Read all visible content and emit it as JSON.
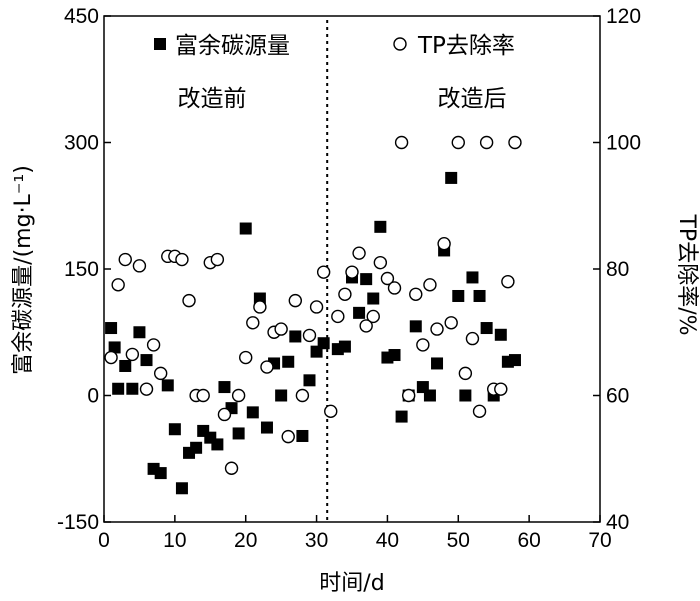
{
  "chart_data": {
    "type": "scatter",
    "xlabel": "时间/d",
    "ylabel_left": "富余碳源量/(mg·L⁻¹)",
    "ylabel_right": "TP去除率/%",
    "xlim": [
      0,
      70
    ],
    "ylim_left": [
      -150,
      450
    ],
    "ylim_right": [
      40,
      120
    ],
    "x_ticks": [
      0,
      10,
      20,
      30,
      40,
      50,
      60,
      70
    ],
    "y_left_ticks": [
      -150,
      0,
      150,
      300,
      450
    ],
    "y_right_ticks": [
      40,
      60,
      80,
      100,
      120
    ],
    "grid": false,
    "legend_position": "top",
    "annotations": {
      "before": "改造前",
      "after": "改造后",
      "divider_x": 31.5
    },
    "series": [
      {
        "name": "富余碳源量",
        "axis": "left",
        "marker": "filled-square",
        "points": [
          [
            1,
            80
          ],
          [
            1.5,
            57
          ],
          [
            2,
            8
          ],
          [
            3,
            35
          ],
          [
            4,
            8
          ],
          [
            5,
            75
          ],
          [
            6,
            42
          ],
          [
            7,
            -87
          ],
          [
            8,
            -92
          ],
          [
            9,
            12
          ],
          [
            10,
            -40
          ],
          [
            11,
            -110
          ],
          [
            12,
            -68
          ],
          [
            13,
            -62
          ],
          [
            14,
            -42
          ],
          [
            15,
            -50
          ],
          [
            16,
            -58
          ],
          [
            17,
            10
          ],
          [
            18,
            -15
          ],
          [
            19,
            -45
          ],
          [
            20,
            198
          ],
          [
            21,
            -20
          ],
          [
            22,
            115
          ],
          [
            23,
            -38
          ],
          [
            24,
            38
          ],
          [
            25,
            0
          ],
          [
            26,
            40
          ],
          [
            27,
            70
          ],
          [
            28,
            -48
          ],
          [
            29,
            18
          ],
          [
            30,
            52
          ],
          [
            31,
            62
          ],
          [
            33,
            55
          ],
          [
            34,
            58
          ],
          [
            35,
            140
          ],
          [
            36,
            98
          ],
          [
            37,
            138
          ],
          [
            38,
            115
          ],
          [
            39,
            200
          ],
          [
            40,
            45
          ],
          [
            41,
            48
          ],
          [
            42,
            -25
          ],
          [
            43,
            0
          ],
          [
            44,
            82
          ],
          [
            45,
            10
          ],
          [
            46,
            0
          ],
          [
            47,
            38
          ],
          [
            48,
            172
          ],
          [
            49,
            258
          ],
          [
            50,
            118
          ],
          [
            51,
            0
          ],
          [
            52,
            140
          ],
          [
            53,
            118
          ],
          [
            54,
            80
          ],
          [
            55,
            0
          ],
          [
            56,
            72
          ],
          [
            57,
            40
          ],
          [
            58,
            42
          ]
        ]
      },
      {
        "name": "TP去除率",
        "axis": "right",
        "marker": "hollow-circle",
        "points": [
          [
            1,
            66
          ],
          [
            2,
            77.5
          ],
          [
            3,
            81.5
          ],
          [
            4,
            66.5
          ],
          [
            5,
            80.5
          ],
          [
            6,
            61
          ],
          [
            7,
            68
          ],
          [
            8,
            63.5
          ],
          [
            9,
            82
          ],
          [
            10,
            82
          ],
          [
            11,
            81.5
          ],
          [
            12,
            75
          ],
          [
            13,
            60
          ],
          [
            14,
            60
          ],
          [
            15,
            81
          ],
          [
            16,
            81.5
          ],
          [
            17,
            57
          ],
          [
            18,
            48.5
          ],
          [
            19,
            60
          ],
          [
            20,
            66
          ],
          [
            21,
            71.5
          ],
          [
            22,
            74
          ],
          [
            23,
            64.5
          ],
          [
            24,
            70
          ],
          [
            25,
            70.5
          ],
          [
            26,
            53.5
          ],
          [
            27,
            75
          ],
          [
            28,
            60
          ],
          [
            29,
            69.5
          ],
          [
            30,
            74
          ],
          [
            31,
            79.5
          ],
          [
            32,
            57.5
          ],
          [
            33,
            72.5
          ],
          [
            34,
            76
          ],
          [
            35,
            79.5
          ],
          [
            36,
            82.5
          ],
          [
            37,
            71
          ],
          [
            38,
            72.5
          ],
          [
            39,
            81
          ],
          [
            40,
            78.5
          ],
          [
            41,
            77
          ],
          [
            42,
            100
          ],
          [
            43,
            60
          ],
          [
            44,
            76
          ],
          [
            45,
            68
          ],
          [
            46,
            77.5
          ],
          [
            47,
            70.5
          ],
          [
            48,
            84
          ],
          [
            49,
            71.5
          ],
          [
            50,
            100
          ],
          [
            51,
            63.5
          ],
          [
            52,
            69
          ],
          [
            53,
            57.5
          ],
          [
            54,
            100
          ],
          [
            55,
            61
          ],
          [
            56,
            61
          ],
          [
            57,
            78
          ],
          [
            58,
            100
          ]
        ]
      }
    ]
  }
}
